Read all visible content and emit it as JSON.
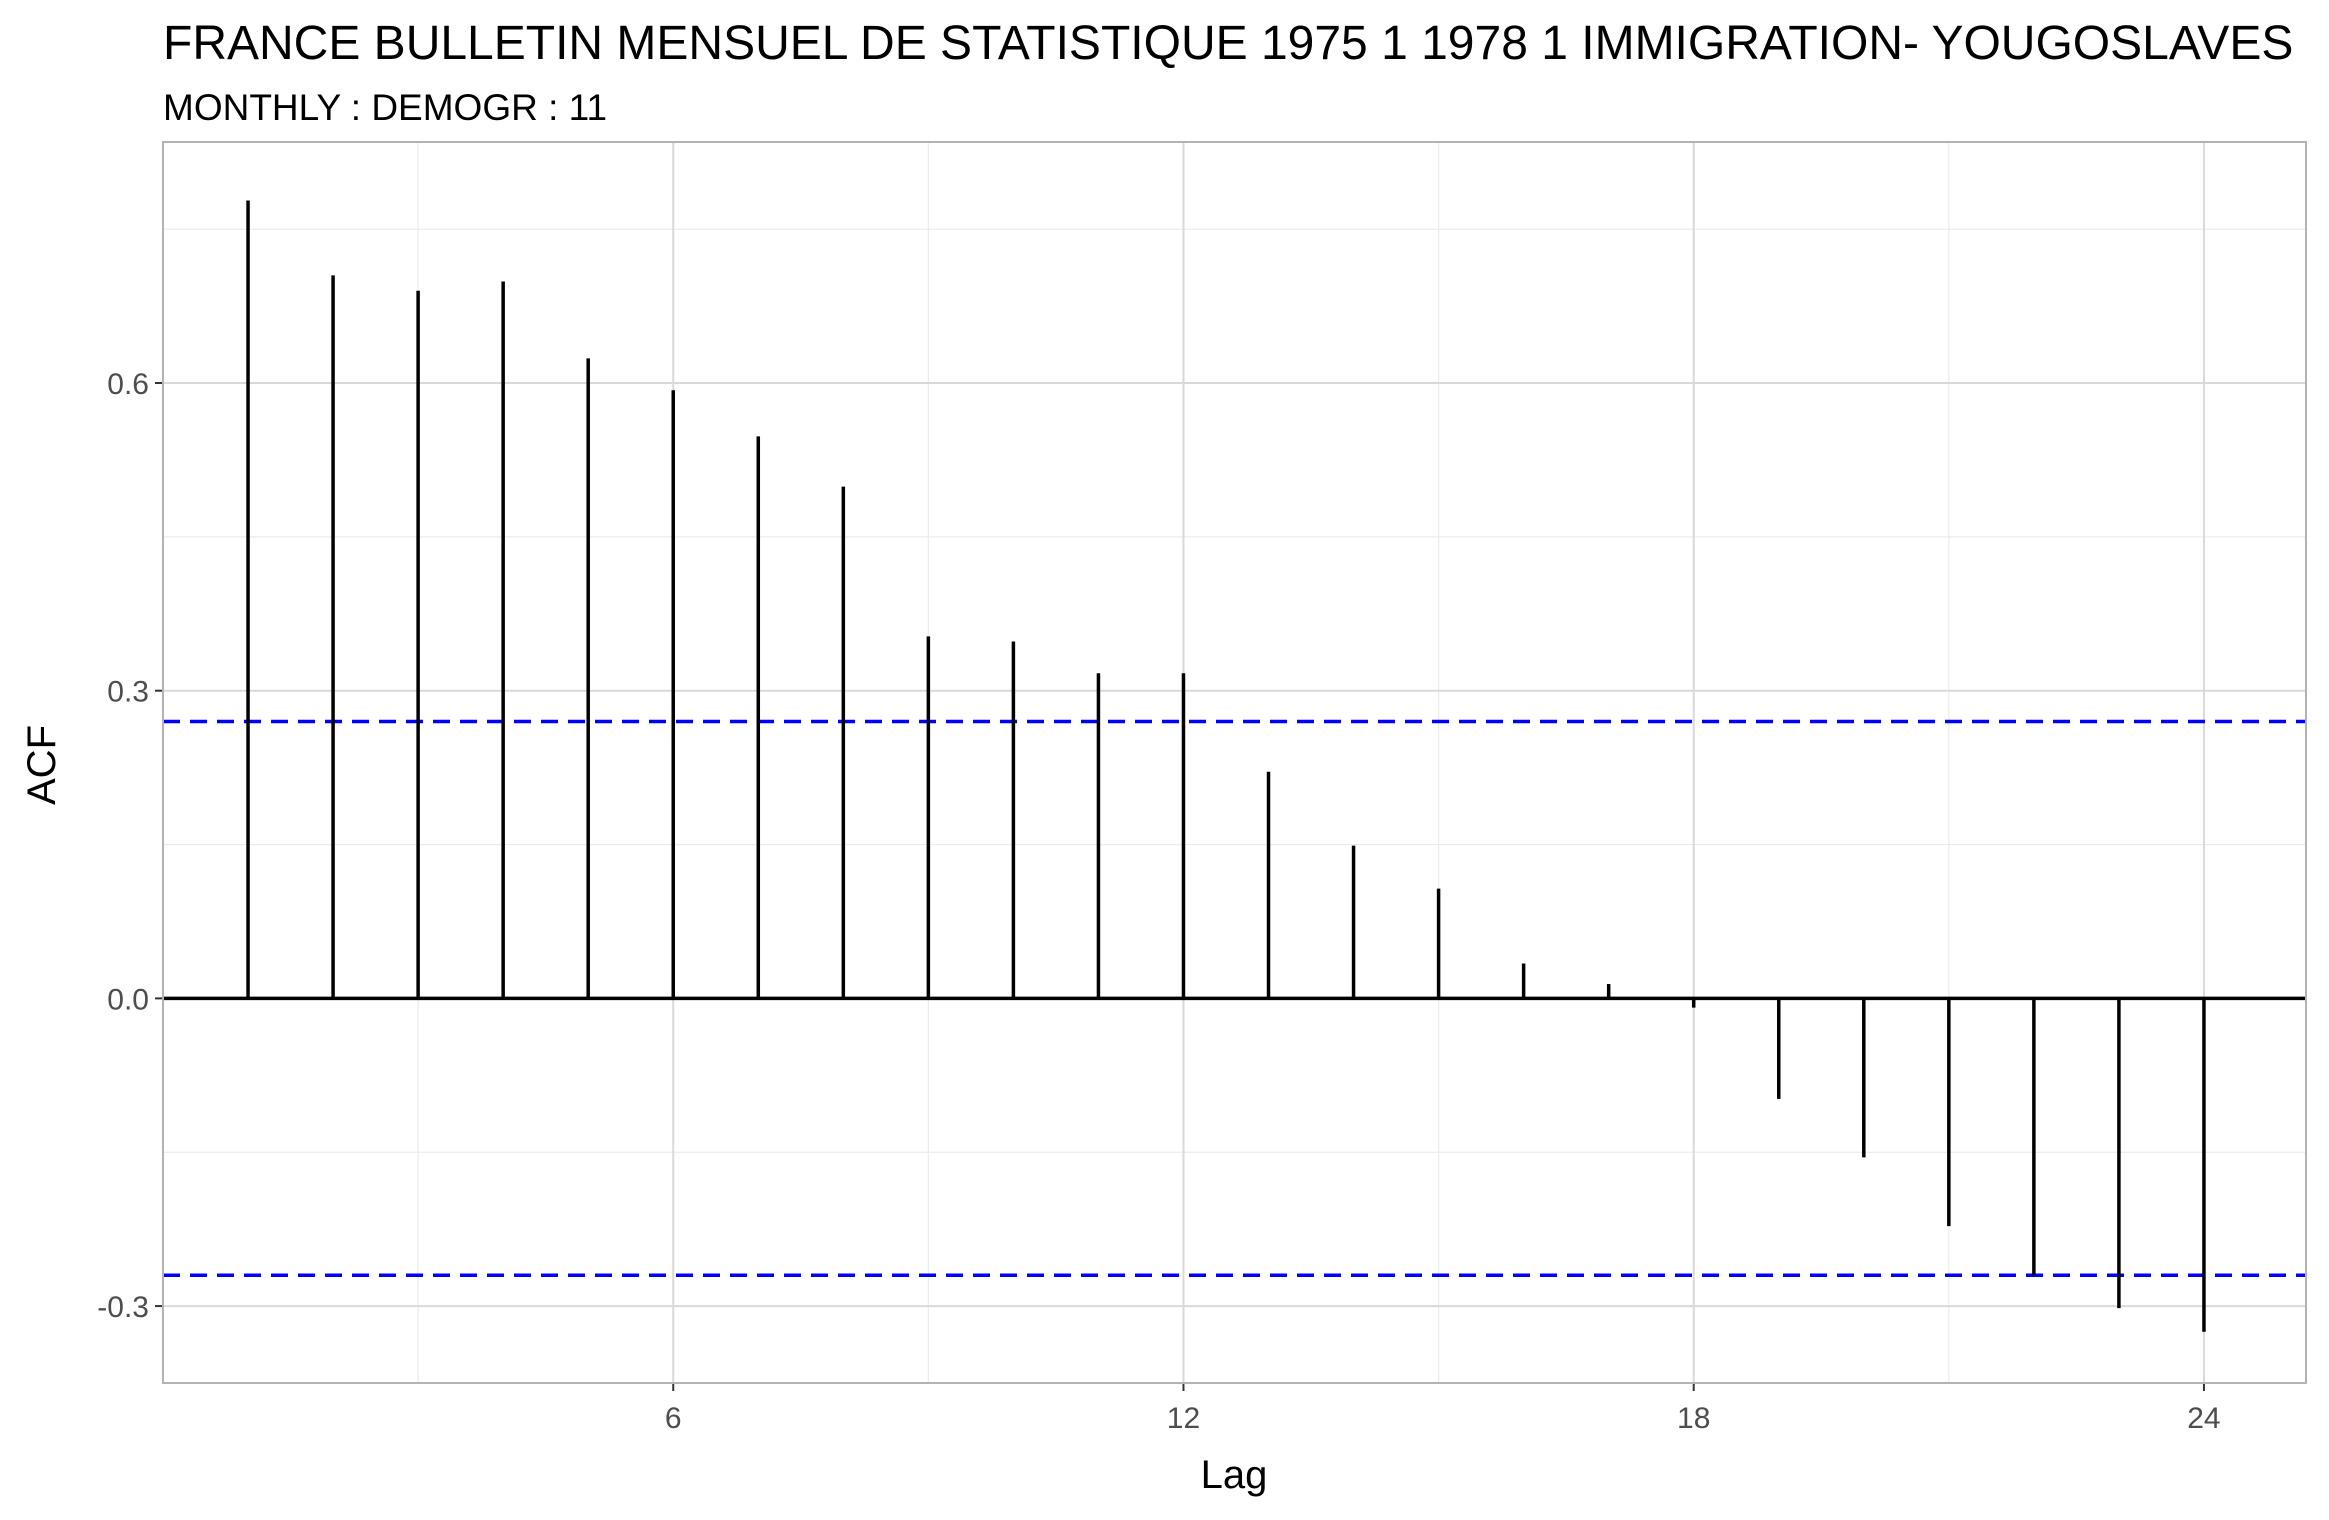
{
  "chart_data": {
    "type": "bar",
    "title": "FRANCE BULLETIN MENSUEL DE STATISTIQUE 1975 1 1978 1 IMMIGRATION- YOUGOSLAVES",
    "subtitle": "MONTHLY : DEMOGR : 11",
    "xlabel": "Lag",
    "ylabel": "ACF",
    "xlim": [
      0,
      25.2
    ],
    "ylim": [
      -0.375,
      0.835
    ],
    "x_ticks": [
      6,
      12,
      18,
      24
    ],
    "y_ticks": [
      -0.3,
      0.0,
      0.3,
      0.6
    ],
    "x_tick_labels": [
      "6",
      "12",
      "18",
      "24"
    ],
    "y_tick_labels": [
      "-0.3",
      "0.0",
      "0.3",
      "0.6"
    ],
    "grid": true,
    "lags": [
      1,
      2,
      3,
      4,
      5,
      6,
      7,
      8,
      9,
      10,
      11,
      12,
      13,
      14,
      15,
      16,
      17,
      18,
      19,
      20,
      21,
      22,
      23,
      24
    ],
    "values": [
      0.778,
      0.705,
      0.69,
      0.699,
      0.624,
      0.593,
      0.548,
      0.499,
      0.353,
      0.348,
      0.317,
      0.317,
      0.221,
      0.149,
      0.107,
      0.034,
      0.014,
      -0.009,
      -0.098,
      -0.155,
      -0.222,
      -0.27,
      -0.302,
      -0.325
    ],
    "confidence_bounds": [
      0.27,
      -0.27
    ],
    "colors": {
      "bars": "#000000",
      "confidence_line": "#0000ff",
      "grid_major": "#d9d9d9",
      "grid_minor": "#ebebeb",
      "panel_border": "#b3b3b3"
    }
  }
}
